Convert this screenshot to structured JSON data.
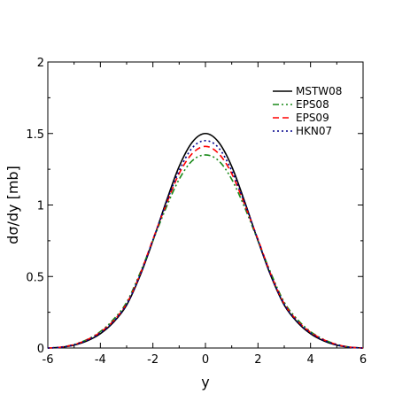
{
  "chart_data": {
    "type": "line",
    "xlabel": "y",
    "ylabel": "dσ/dy [mb]",
    "xlim": [
      -6,
      6
    ],
    "ylim": [
      0,
      2
    ],
    "xticks": [
      -6,
      -4,
      -2,
      0,
      2,
      4,
      6
    ],
    "yticks": [
      0,
      0.5,
      1,
      1.5,
      2
    ],
    "xtick_labels": [
      "-6",
      "-4",
      "-2",
      "0",
      "2",
      "4",
      "6"
    ],
    "ytick_labels": [
      "0",
      "0.5",
      "1",
      "1.5",
      "2"
    ],
    "grid": false,
    "legend_position": "top-right",
    "x": [
      -6,
      -5.5,
      -5,
      -4.5,
      -4,
      -3.5,
      -3,
      -2.5,
      -2,
      -1.5,
      -1,
      -0.5,
      0,
      0.5,
      1,
      1.5,
      2,
      2.5,
      3,
      3.5,
      4,
      4.5,
      5,
      5.5,
      6
    ],
    "series": [
      {
        "name": "MSTW08",
        "color": "#000000",
        "dash": "solid",
        "values": [
          0.0,
          0.005,
          0.02,
          0.05,
          0.1,
          0.18,
          0.3,
          0.5,
          0.75,
          1.02,
          1.27,
          1.44,
          1.5,
          1.44,
          1.27,
          1.02,
          0.75,
          0.5,
          0.3,
          0.18,
          0.1,
          0.05,
          0.02,
          0.005,
          0.0
        ]
      },
      {
        "name": "EPS08",
        "color": "#1a8a1a",
        "dash": "dash-dot-dot",
        "values": [
          0.0,
          0.006,
          0.025,
          0.06,
          0.115,
          0.2,
          0.32,
          0.52,
          0.75,
          0.98,
          1.18,
          1.31,
          1.35,
          1.31,
          1.18,
          0.98,
          0.75,
          0.52,
          0.32,
          0.2,
          0.115,
          0.06,
          0.025,
          0.006,
          0.0
        ]
      },
      {
        "name": "EPS09",
        "color": "#ff0000",
        "dash": "dashed",
        "values": [
          0.0,
          0.006,
          0.024,
          0.058,
          0.11,
          0.19,
          0.31,
          0.51,
          0.76,
          1.0,
          1.22,
          1.36,
          1.41,
          1.36,
          1.22,
          1.0,
          0.76,
          0.51,
          0.31,
          0.19,
          0.11,
          0.058,
          0.024,
          0.006,
          0.0
        ]
      },
      {
        "name": "HKN07",
        "color": "#00008b",
        "dash": "dotted",
        "values": [
          0.0,
          0.005,
          0.022,
          0.054,
          0.105,
          0.185,
          0.305,
          0.505,
          0.755,
          1.01,
          1.24,
          1.4,
          1.45,
          1.4,
          1.24,
          1.01,
          0.755,
          0.505,
          0.305,
          0.185,
          0.105,
          0.054,
          0.022,
          0.005,
          0.0
        ]
      }
    ]
  }
}
